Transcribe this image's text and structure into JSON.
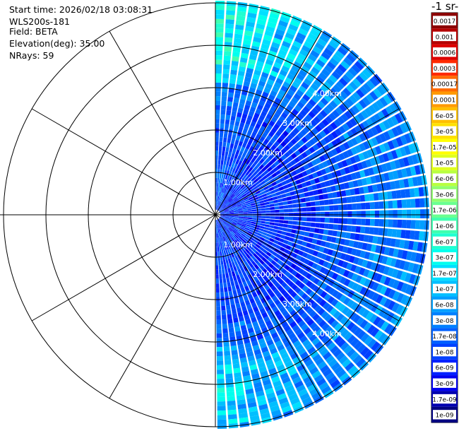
{
  "info": {
    "start_time": "Start time: 2026/02/18 03:08:31",
    "instrument": "WLS200s-181",
    "field": "Field: BETA",
    "elevation": "Elevation(deg): 35.00",
    "nrays": "NRays: 59"
  },
  "colorbar": {
    "title": "-1 sr-",
    "labels": [
      "0.0017",
      "0.001",
      "0.0006",
      "0.0003",
      "0.00017",
      "0.0001",
      "6e-05",
      "3e-05",
      "1.7e-05",
      "1e-05",
      "6e-06",
      "3e-06",
      "1.7e-06",
      "1e-06",
      "6e-07",
      "3e-07",
      "1.7e-07",
      "1e-07",
      "6e-08",
      "3e-08",
      "1.7e-08",
      "1e-08",
      "6e-09",
      "3e-09",
      "1.7e-09",
      "1e-09"
    ],
    "colors": [
      "#8b0000",
      "#b40000",
      "#dc0000",
      "#ff2a00",
      "#ff6a00",
      "#ff9a00",
      "#ffbf00",
      "#ffe000",
      "#ffff00",
      "#e0ff20",
      "#b8ff40",
      "#90ff70",
      "#6aff90",
      "#40ffb0",
      "#20ffd0",
      "#00ffee",
      "#00e0ff",
      "#00bfff",
      "#009fff",
      "#0080ff",
      "#0060ff",
      "#0040ff",
      "#0020ff",
      "#0000ee",
      "#0000b0",
      "#000080"
    ]
  },
  "chart_data": {
    "type": "heatmap",
    "projection": "polar PPI",
    "field": "BETA",
    "rays_azimuth_range_deg": [
      0,
      180
    ],
    "range_rings_km": [
      1,
      2,
      3,
      4,
      5
    ],
    "range_labels": [
      "1.00km",
      "2.00km",
      "3.00km",
      "4.00km"
    ],
    "radial_spokes_deg": [
      0,
      30,
      60,
      90,
      120,
      150,
      180,
      210,
      240,
      270,
      300,
      330
    ]
  }
}
